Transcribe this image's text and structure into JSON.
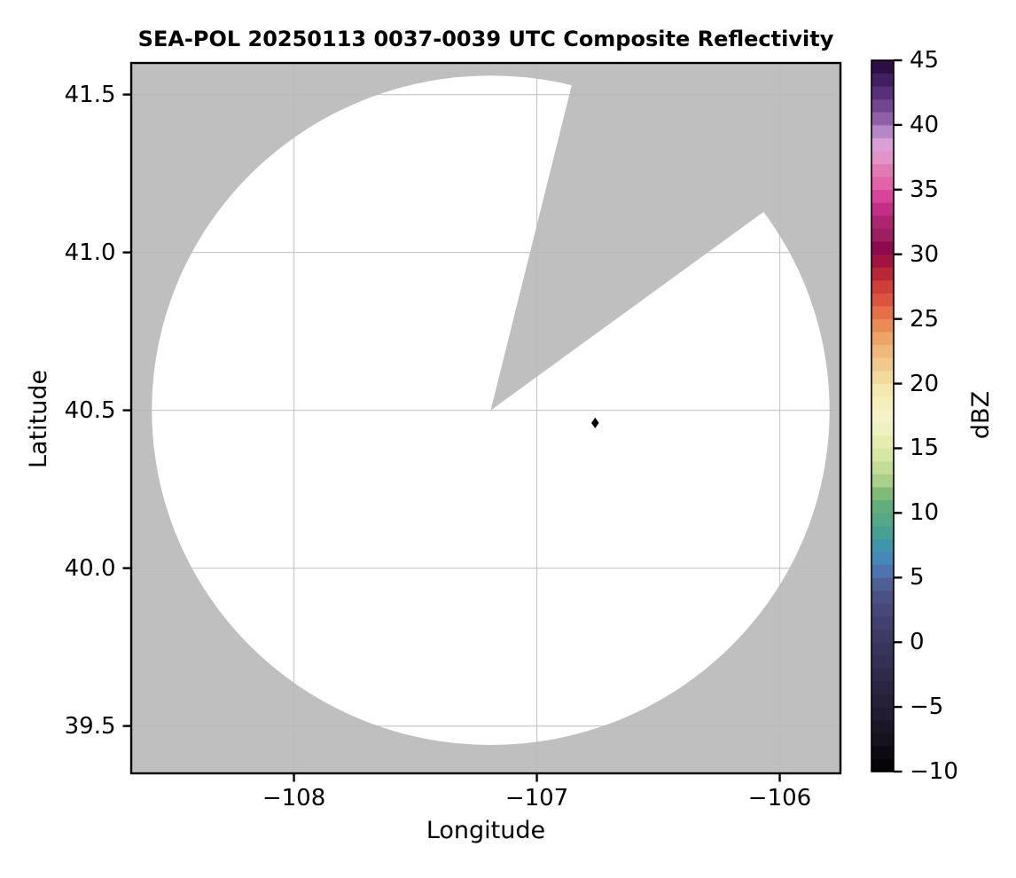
{
  "chart_data": {
    "type": "heatmap",
    "title": "SEA-POL 20250113 0037-0039 UTC Composite Reflectivity",
    "xlabel": "Longitude",
    "ylabel": "Latitude",
    "xlim": [
      -108.67,
      -105.75
    ],
    "ylim": [
      39.35,
      41.6
    ],
    "grid": true,
    "xticks": {
      "values": [
        -108,
        -107,
        -106
      ],
      "labels": [
        "−108",
        "−107",
        "−106"
      ]
    },
    "yticks": {
      "values": [
        39.5,
        40.0,
        40.5,
        41.0,
        41.5
      ],
      "labels": [
        "39.5",
        "40.0",
        "40.5",
        "41.0",
        "41.5"
      ]
    },
    "colors": {
      "figure_background": "#ffffff",
      "outside_coverage": "#bfbfbf",
      "coverage_no_echo": "#ffffff",
      "gridline": "#b8b8b8",
      "frame": "#000000",
      "text": "#000000"
    },
    "radar_coverage": {
      "center_lon": -107.19,
      "center_lat": 40.5,
      "radius_lon_deg": 1.395,
      "radius_lat_deg": 1.06,
      "missing_sector_azimuth_start_deg": 14,
      "missing_sector_azimuth_end_deg": 54
    },
    "marker": {
      "lon": -106.76,
      "lat": 40.46,
      "shape": "thin-diamond",
      "color": "#000000"
    },
    "colorbar": {
      "label": "dBZ",
      "min": -10,
      "max": 45,
      "tick_values": [
        45,
        40,
        35,
        30,
        25,
        20,
        15,
        10,
        5,
        0,
        -5,
        -10
      ],
      "tick_labels": [
        "45",
        "40",
        "35",
        "30",
        "25",
        "20",
        "15",
        "10",
        "5",
        "0",
        "−5",
        "−10"
      ],
      "band_step_dbz": 1,
      "band_colors_low_to_high": [
        "#060309",
        "#0e0a14",
        "#16121e",
        "#1c1727",
        "#211c30",
        "#262138",
        "#2b2541",
        "#2f2a4a",
        "#343053",
        "#38355b",
        "#3d3a64",
        "#42406e",
        "#464877",
        "#4a5283",
        "#4d5f93",
        "#4d74b0",
        "#4689b8",
        "#3f96a8",
        "#47a192",
        "#54a886",
        "#62ad7c",
        "#80ba79",
        "#a9cf8a",
        "#c3dc96",
        "#d6e6a4",
        "#e4ecae",
        "#f0f1c0",
        "#f5f2c8",
        "#f5efbd",
        "#f4e8ae",
        "#f2da9c",
        "#f0c98c",
        "#efb97c",
        "#eda467",
        "#ea8a55",
        "#e57048",
        "#dc5340",
        "#cf3f38",
        "#b82834",
        "#a11440",
        "#8d0a4e",
        "#9c1f60",
        "#ad2471",
        "#c32e86",
        "#d84498",
        "#e263a8",
        "#e27bb4",
        "#e293c8",
        "#d9a0d6",
        "#b487c6",
        "#8f60a6",
        "#714590",
        "#58307a",
        "#422060",
        "#2d1043"
      ]
    }
  }
}
